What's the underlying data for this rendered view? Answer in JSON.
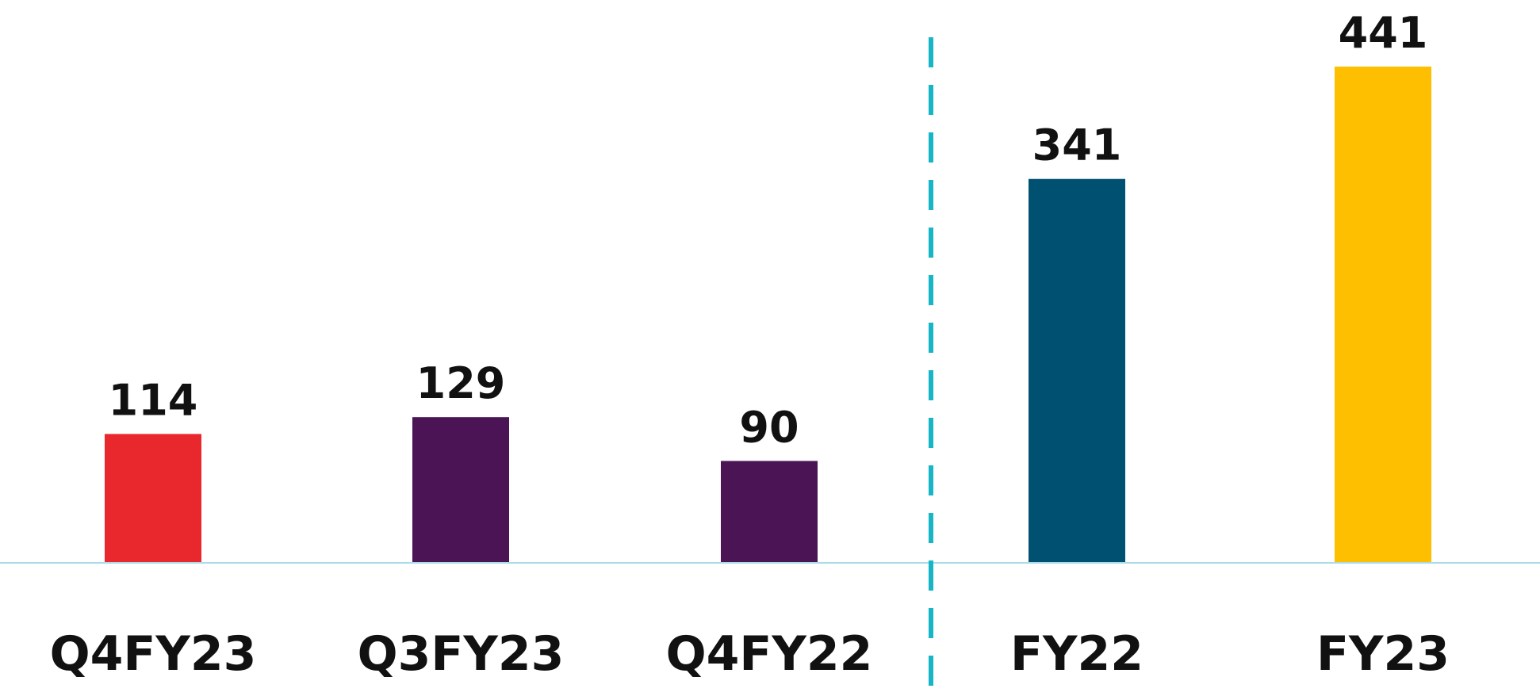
{
  "chart_data": {
    "type": "bar",
    "categories": [
      "Q4FY23",
      "Q3FY23",
      "Q4FY22",
      "FY22",
      "FY23"
    ],
    "values": [
      114,
      129,
      90,
      341,
      441
    ],
    "colors": [
      "#e9282e",
      "#4b1555",
      "#4b1555",
      "#005072",
      "#fdbf00"
    ]
  }
}
